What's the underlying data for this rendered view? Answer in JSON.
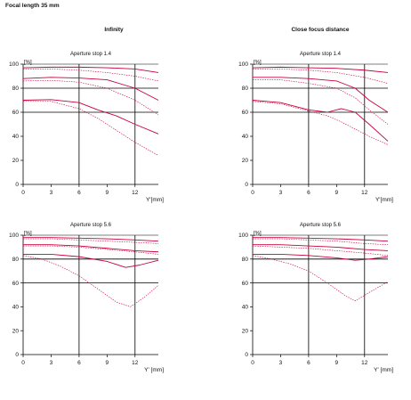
{
  "header": {
    "focal_length": "Focal length 35 mm",
    "col_left": "Infinity",
    "col_right": "Close focus distance"
  },
  "colors": {
    "mtf_line": "#c8003c",
    "axis": "#000000"
  },
  "chart_data": [
    {
      "type": "line",
      "title": "Aperture stop 1.4",
      "ylabel": "[%]",
      "xlabel": "Y'[mm]",
      "xlim": [
        0,
        14.5
      ],
      "ylim": [
        0,
        100
      ],
      "xticks": [
        "0",
        "3",
        "6",
        "9",
        "12"
      ],
      "yticks": [
        "0",
        "20",
        "40",
        "60",
        "80",
        "100"
      ],
      "grid": "major-lines-at-x6-x12-y60-y80",
      "series": [
        {
          "style": "solid",
          "x": [
            0,
            3,
            6,
            9,
            12,
            14.5
          ],
          "y": [
            97,
            97.5,
            97.5,
            97,
            96,
            93
          ]
        },
        {
          "style": "dashed",
          "x": [
            0,
            3,
            6,
            9,
            12,
            14.5
          ],
          "y": [
            96,
            96,
            95,
            93,
            90,
            86
          ]
        },
        {
          "style": "solid",
          "x": [
            0,
            3,
            6,
            9,
            12,
            14.5
          ],
          "y": [
            88,
            89,
            88.5,
            87,
            80,
            70
          ]
        },
        {
          "style": "dashed",
          "x": [
            0,
            3,
            6,
            9,
            12,
            14.5
          ],
          "y": [
            86,
            86.5,
            85,
            80,
            70,
            58
          ]
        },
        {
          "style": "solid",
          "x": [
            0,
            3,
            6,
            8,
            10,
            12,
            14.5
          ],
          "y": [
            70,
            70.5,
            68,
            62,
            57,
            50,
            42
          ]
        },
        {
          "style": "dashed",
          "x": [
            0,
            3,
            6,
            8,
            10,
            12,
            14.5
          ],
          "y": [
            69,
            69,
            63,
            55,
            45,
            35,
            24
          ]
        }
      ]
    },
    {
      "type": "line",
      "title": "Aperture stop 1.4",
      "ylabel": "[%]",
      "xlabel": "Y'[mm]",
      "xlim": [
        0,
        14.5
      ],
      "ylim": [
        0,
        100
      ],
      "xticks": [
        "0",
        "3",
        "6",
        "9",
        "12"
      ],
      "yticks": [
        "0",
        "20",
        "40",
        "60",
        "80",
        "100"
      ],
      "grid": "major-lines-at-x6-x12-y60-y80",
      "series": [
        {
          "style": "solid",
          "x": [
            0,
            3,
            6,
            9,
            12,
            14.5
          ],
          "y": [
            97,
            97.5,
            97,
            96.5,
            95,
            93
          ]
        },
        {
          "style": "dashed",
          "x": [
            0,
            3,
            6,
            9,
            12,
            14.5
          ],
          "y": [
            96,
            96,
            95,
            93,
            89,
            84
          ]
        },
        {
          "style": "solid",
          "x": [
            0,
            3,
            6,
            9,
            11,
            12.5,
            14.5
          ],
          "y": [
            89,
            89,
            88,
            86,
            80,
            70,
            60
          ]
        },
        {
          "style": "dashed",
          "x": [
            0,
            3,
            6,
            9,
            11,
            12.5,
            14.5
          ],
          "y": [
            87,
            87,
            84,
            80,
            72,
            62,
            50
          ]
        },
        {
          "style": "solid",
          "x": [
            0,
            3,
            6,
            8,
            9.5,
            11,
            12.5,
            14.5
          ],
          "y": [
            70,
            68,
            62,
            60,
            63,
            60,
            50,
            36
          ]
        },
        {
          "style": "dashed",
          "x": [
            0,
            3,
            6,
            8,
            9.5,
            11,
            12.5,
            14.5
          ],
          "y": [
            69,
            67,
            61,
            57,
            52,
            46,
            40,
            33
          ]
        }
      ]
    },
    {
      "type": "line",
      "title": "Aperture stop 5.6",
      "ylabel": "[%]",
      "xlabel": "Y' [mm]",
      "xlim": [
        0,
        14.5
      ],
      "ylim": [
        0,
        100
      ],
      "xticks": [
        "0",
        "3",
        "6",
        "9",
        "12"
      ],
      "yticks": [
        "0",
        "20",
        "40",
        "60",
        "80",
        "100"
      ],
      "grid": "major-lines-at-x6-x12-y60-y80",
      "series": [
        {
          "style": "solid",
          "x": [
            0,
            3,
            6,
            9,
            12,
            14.5
          ],
          "y": [
            98,
            98,
            97.5,
            97,
            96,
            95
          ]
        },
        {
          "style": "dashed",
          "x": [
            0,
            3,
            6,
            9,
            12,
            14.5
          ],
          "y": [
            97,
            97,
            96,
            95,
            94,
            93
          ]
        },
        {
          "style": "solid",
          "x": [
            0,
            3,
            6,
            9,
            12,
            14.5
          ],
          "y": [
            92,
            92,
            91,
            89,
            87,
            86
          ]
        },
        {
          "style": "dashed",
          "x": [
            0,
            3,
            6,
            9,
            12,
            14.5
          ],
          "y": [
            91,
            91,
            90,
            88,
            86,
            84
          ]
        },
        {
          "style": "solid",
          "x": [
            0,
            3,
            6,
            9,
            11,
            12.5,
            14.5
          ],
          "y": [
            84,
            84,
            82,
            78,
            73,
            75,
            79
          ]
        },
        {
          "style": "dashed",
          "x": [
            0,
            2,
            4,
            6,
            8,
            10,
            11.5,
            13,
            14.5
          ],
          "y": [
            83,
            80,
            74,
            66,
            55,
            44,
            40,
            48,
            58
          ]
        }
      ]
    },
    {
      "type": "line",
      "title": "Aperture stop 5.6",
      "ylabel": "[%]",
      "xlabel": "Y' [mm]",
      "xlim": [
        0,
        14.5
      ],
      "ylim": [
        0,
        100
      ],
      "xticks": [
        "0",
        "3",
        "6",
        "9",
        "12"
      ],
      "yticks": [
        "0",
        "20",
        "40",
        "60",
        "80",
        "100"
      ],
      "grid": "major-lines-at-x6-x12-y60-y80",
      "series": [
        {
          "style": "solid",
          "x": [
            0,
            3,
            6,
            9,
            12,
            14.5
          ],
          "y": [
            98,
            98,
            97.5,
            97,
            96,
            95
          ]
        },
        {
          "style": "dashed",
          "x": [
            0,
            3,
            6,
            9,
            12,
            14.5
          ],
          "y": [
            97,
            97,
            96,
            95,
            93,
            92
          ]
        },
        {
          "style": "solid",
          "x": [
            0,
            3,
            6,
            9,
            12,
            14.5
          ],
          "y": [
            92,
            92,
            91,
            90,
            88,
            87
          ]
        },
        {
          "style": "dashed",
          "x": [
            0,
            3,
            6,
            9,
            12,
            14.5
          ],
          "y": [
            91,
            90,
            89,
            87,
            85,
            83
          ]
        },
        {
          "style": "solid",
          "x": [
            0,
            3,
            6,
            9,
            11,
            12.5,
            14.5
          ],
          "y": [
            84,
            84,
            83,
            81,
            79,
            80,
            82
          ]
        },
        {
          "style": "dashed",
          "x": [
            0,
            2,
            4,
            6,
            8,
            10,
            11,
            12.5,
            14.5
          ],
          "y": [
            83,
            80,
            76,
            70,
            60,
            49,
            45,
            52,
            61
          ]
        }
      ]
    }
  ]
}
